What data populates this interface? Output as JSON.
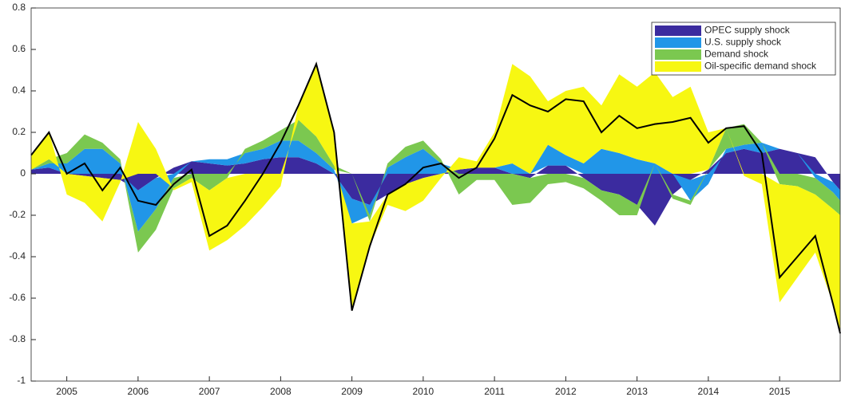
{
  "chart_data": {
    "type": "stacked-area",
    "x": [
      2004.5,
      2004.75,
      2005,
      2005.25,
      2005.5,
      2005.75,
      2006,
      2006.25,
      2006.5,
      2006.75,
      2007,
      2007.25,
      2007.5,
      2007.75,
      2008,
      2008.25,
      2008.5,
      2008.75,
      2009,
      2009.25,
      2009.5,
      2009.75,
      2010,
      2010.25,
      2010.5,
      2010.75,
      2011,
      2011.25,
      2011.5,
      2011.75,
      2012,
      2012.25,
      2012.5,
      2012.75,
      2013,
      2013.25,
      2013.5,
      2013.75,
      2014,
      2014.25,
      2014.5,
      2014.75,
      2015,
      2015.25,
      2015.5,
      2015.75,
      2015.85
    ],
    "series": [
      {
        "name": "OPEC supply shock",
        "color": "#3b2b9f",
        "values": [
          0.02,
          0.03,
          0,
          -0.01,
          -0.02,
          -0.03,
          -0.08,
          -0.02,
          0.03,
          0.06,
          0.05,
          0.04,
          0.05,
          0.07,
          0.08,
          0.08,
          0.05,
          0,
          -0.12,
          -0.15,
          -0.1,
          -0.05,
          -0.02,
          0,
          0.02,
          0.03,
          0.03,
          0,
          -0.02,
          0.04,
          0.04,
          -0.02,
          -0.08,
          -0.1,
          -0.15,
          -0.25,
          -0.1,
          -0.03,
          0.02,
          0.1,
          0.12,
          0.1,
          0.12,
          0.1,
          0.08,
          -0.04,
          -0.08
        ]
      },
      {
        "name": "U.S. supply shock",
        "color": "#2196e8",
        "values": [
          0,
          0.02,
          0.05,
          0.12,
          0.12,
          0.05,
          -0.2,
          -0.15,
          -0.02,
          0,
          0.02,
          0.03,
          0.05,
          0.05,
          0.08,
          0.08,
          0.05,
          0.02,
          -0.12,
          -0.05,
          0.03,
          0.08,
          0.12,
          0.05,
          0,
          0,
          0,
          0.05,
          0,
          0.1,
          0.05,
          0.05,
          0.12,
          0.1,
          0.07,
          0.05,
          0,
          -0.1,
          -0.05,
          0.02,
          0.02,
          0.05,
          0,
          0,
          -0.02,
          -0.05,
          -0.05
        ]
      },
      {
        "name": "Demand shock",
        "color": "#7bc850",
        "values": [
          0,
          0.02,
          0.05,
          0.07,
          0.03,
          0.02,
          -0.1,
          -0.1,
          -0.05,
          -0.02,
          -0.08,
          -0.02,
          0.02,
          0.04,
          0.05,
          0.1,
          0.08,
          0.02,
          0,
          -0.03,
          0.02,
          0.05,
          0.04,
          0.02,
          -0.1,
          -0.03,
          -0.03,
          -0.15,
          -0.12,
          -0.05,
          -0.04,
          -0.05,
          -0.05,
          -0.1,
          -0.05,
          0,
          -0.02,
          -0.02,
          0,
          0.1,
          0.1,
          0,
          -0.05,
          -0.06,
          -0.08,
          -0.08,
          -0.07
        ]
      },
      {
        "name": "Oil-specific demand shock",
        "color": "#f7f712",
        "values": [
          0.07,
          0.13,
          -0.1,
          -0.13,
          -0.21,
          -0.01,
          0.25,
          0.12,
          -0.01,
          -0.02,
          -0.29,
          -0.3,
          -0.25,
          -0.16,
          -0.06,
          0.07,
          0.35,
          0.16,
          -0.42,
          -0.12,
          -0.05,
          -0.13,
          -0.11,
          -0.02,
          0.06,
          0.03,
          0.17,
          0.48,
          0.47,
          0.21,
          0.31,
          0.37,
          0.21,
          0.38,
          0.35,
          0.44,
          0.37,
          0.42,
          0.18,
          0,
          -0.01,
          -0.05,
          -0.57,
          -0.44,
          -0.28,
          -0.46,
          -0.57
        ]
      }
    ],
    "line": {
      "color": "#000000",
      "values": [
        0.09,
        0.2,
        0,
        0.05,
        -0.08,
        0.03,
        -0.13,
        -0.15,
        -0.05,
        0.02,
        -0.3,
        -0.25,
        -0.13,
        0,
        0.15,
        0.33,
        0.53,
        0.2,
        -0.66,
        -0.35,
        -0.1,
        -0.05,
        0.03,
        0.05,
        -0.02,
        0.03,
        0.17,
        0.38,
        0.33,
        0.3,
        0.36,
        0.35,
        0.2,
        0.28,
        0.22,
        0.24,
        0.25,
        0.27,
        0.15,
        0.22,
        0.23,
        0.1,
        -0.5,
        -0.4,
        -0.3,
        -0.63,
        -0.77
      ]
    },
    "xlim": [
      2004.5,
      2015.85
    ],
    "xticks": [
      2005,
      2006,
      2007,
      2008,
      2009,
      2010,
      2011,
      2012,
      2013,
      2014,
      2015
    ],
    "ylim": [
      -1,
      0.8
    ],
    "yticks": [
      -1,
      -0.8,
      -0.6,
      -0.4,
      -0.2,
      0,
      0.2,
      0.4,
      0.6,
      0.8
    ],
    "legend": "top-right"
  }
}
